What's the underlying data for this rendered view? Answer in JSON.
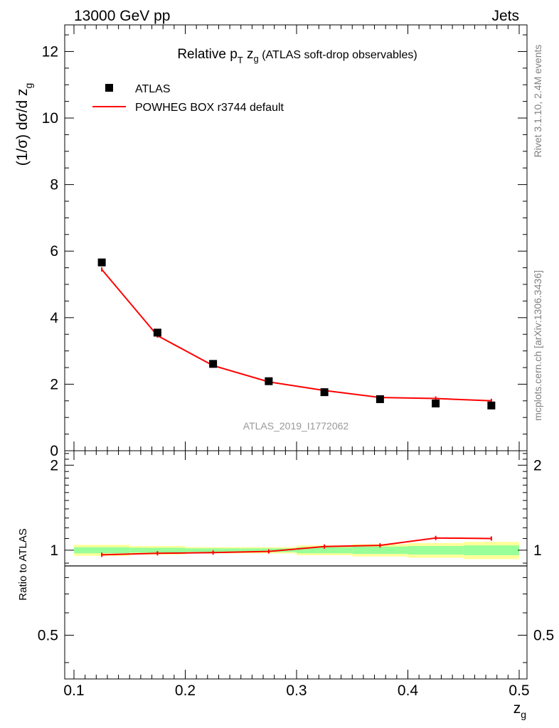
{
  "header": {
    "left": "13000 GeV pp",
    "right": "Jets"
  },
  "side": {
    "rivet": "Rivet 3.1.10,  2.4M events",
    "mcplots": "mcplots.cern.ch [arXiv:1306.3436]"
  },
  "colors": {
    "mc": "#ff0000",
    "data": "#000000",
    "band_inner": "#99ff99",
    "band_outer": "#ffff99"
  },
  "chart_data": [
    {
      "type": "scatter",
      "panel": "main",
      "title": "Relative p_T z_g (ATLAS soft-drop observables)",
      "title_parts": {
        "main": "Relative p",
        "sub_T": "T",
        "mid": " z",
        "sub_g": "g",
        "rest": " (ATLAS soft-drop observables)"
      },
      "ylabel": "(1/σ) dσ/d z_g",
      "ylabel_parts": {
        "main": "(1/σ) dσ/d z",
        "sub": "g"
      },
      "xlim": [
        0.1,
        0.5
      ],
      "ylim": [
        0,
        12.8
      ],
      "yticks": [
        0,
        2,
        4,
        6,
        8,
        10,
        12
      ],
      "ytick_labels": [
        "0",
        "2",
        "4",
        "6",
        "8",
        "10",
        "12"
      ],
      "legend_position": "top-left",
      "analysis_label": "ATLAS_2019_I1772062",
      "series": [
        {
          "name": "ATLAS",
          "style": "markers",
          "x": [
            0.125,
            0.175,
            0.225,
            0.275,
            0.325,
            0.375,
            0.425,
            0.475
          ],
          "y": [
            5.66,
            3.55,
            2.61,
            2.09,
            1.76,
            1.55,
            1.42,
            1.36
          ]
        },
        {
          "name": "POWHEG BOX r3744 default",
          "style": "line",
          "x": [
            0.125,
            0.175,
            0.225,
            0.275,
            0.325,
            0.375,
            0.425,
            0.475
          ],
          "y": [
            5.45,
            3.46,
            2.56,
            2.07,
            1.81,
            1.6,
            1.57,
            1.5
          ]
        }
      ]
    },
    {
      "type": "line",
      "panel": "ratio",
      "ylabel": "Ratio to ATLAS",
      "xlabel": "z_g",
      "xlabel_parts": {
        "main": "z",
        "sub": "g"
      },
      "xlim": [
        0.1,
        0.5
      ],
      "ylim": [
        0.35,
        2.25
      ],
      "xticks": [
        0.1,
        0.2,
        0.3,
        0.4,
        0.5
      ],
      "xtick_labels": [
        "0.1",
        "0.2",
        "0.3",
        "0.4",
        "0.5"
      ],
      "yticks": [
        0.5,
        1,
        2
      ],
      "ytick_labels": [
        "0.5",
        "1",
        "2"
      ],
      "bands": {
        "bin_edges": [
          0.1,
          0.15,
          0.2,
          0.25,
          0.3,
          0.35,
          0.4,
          0.45,
          0.5
        ],
        "inner_halfwidth": [
          0.025,
          0.02,
          0.015,
          0.015,
          0.025,
          0.03,
          0.035,
          0.04
        ],
        "outer_halfwidth": [
          0.045,
          0.035,
          0.025,
          0.025,
          0.04,
          0.05,
          0.06,
          0.07
        ]
      },
      "series": [
        {
          "name": "POWHEG BOX r3744 default / ATLAS",
          "x": [
            0.125,
            0.175,
            0.225,
            0.275,
            0.325,
            0.375,
            0.425,
            0.475
          ],
          "y": [
            0.963,
            0.975,
            0.981,
            0.99,
            1.03,
            1.04,
            1.105,
            1.1
          ]
        }
      ]
    }
  ]
}
